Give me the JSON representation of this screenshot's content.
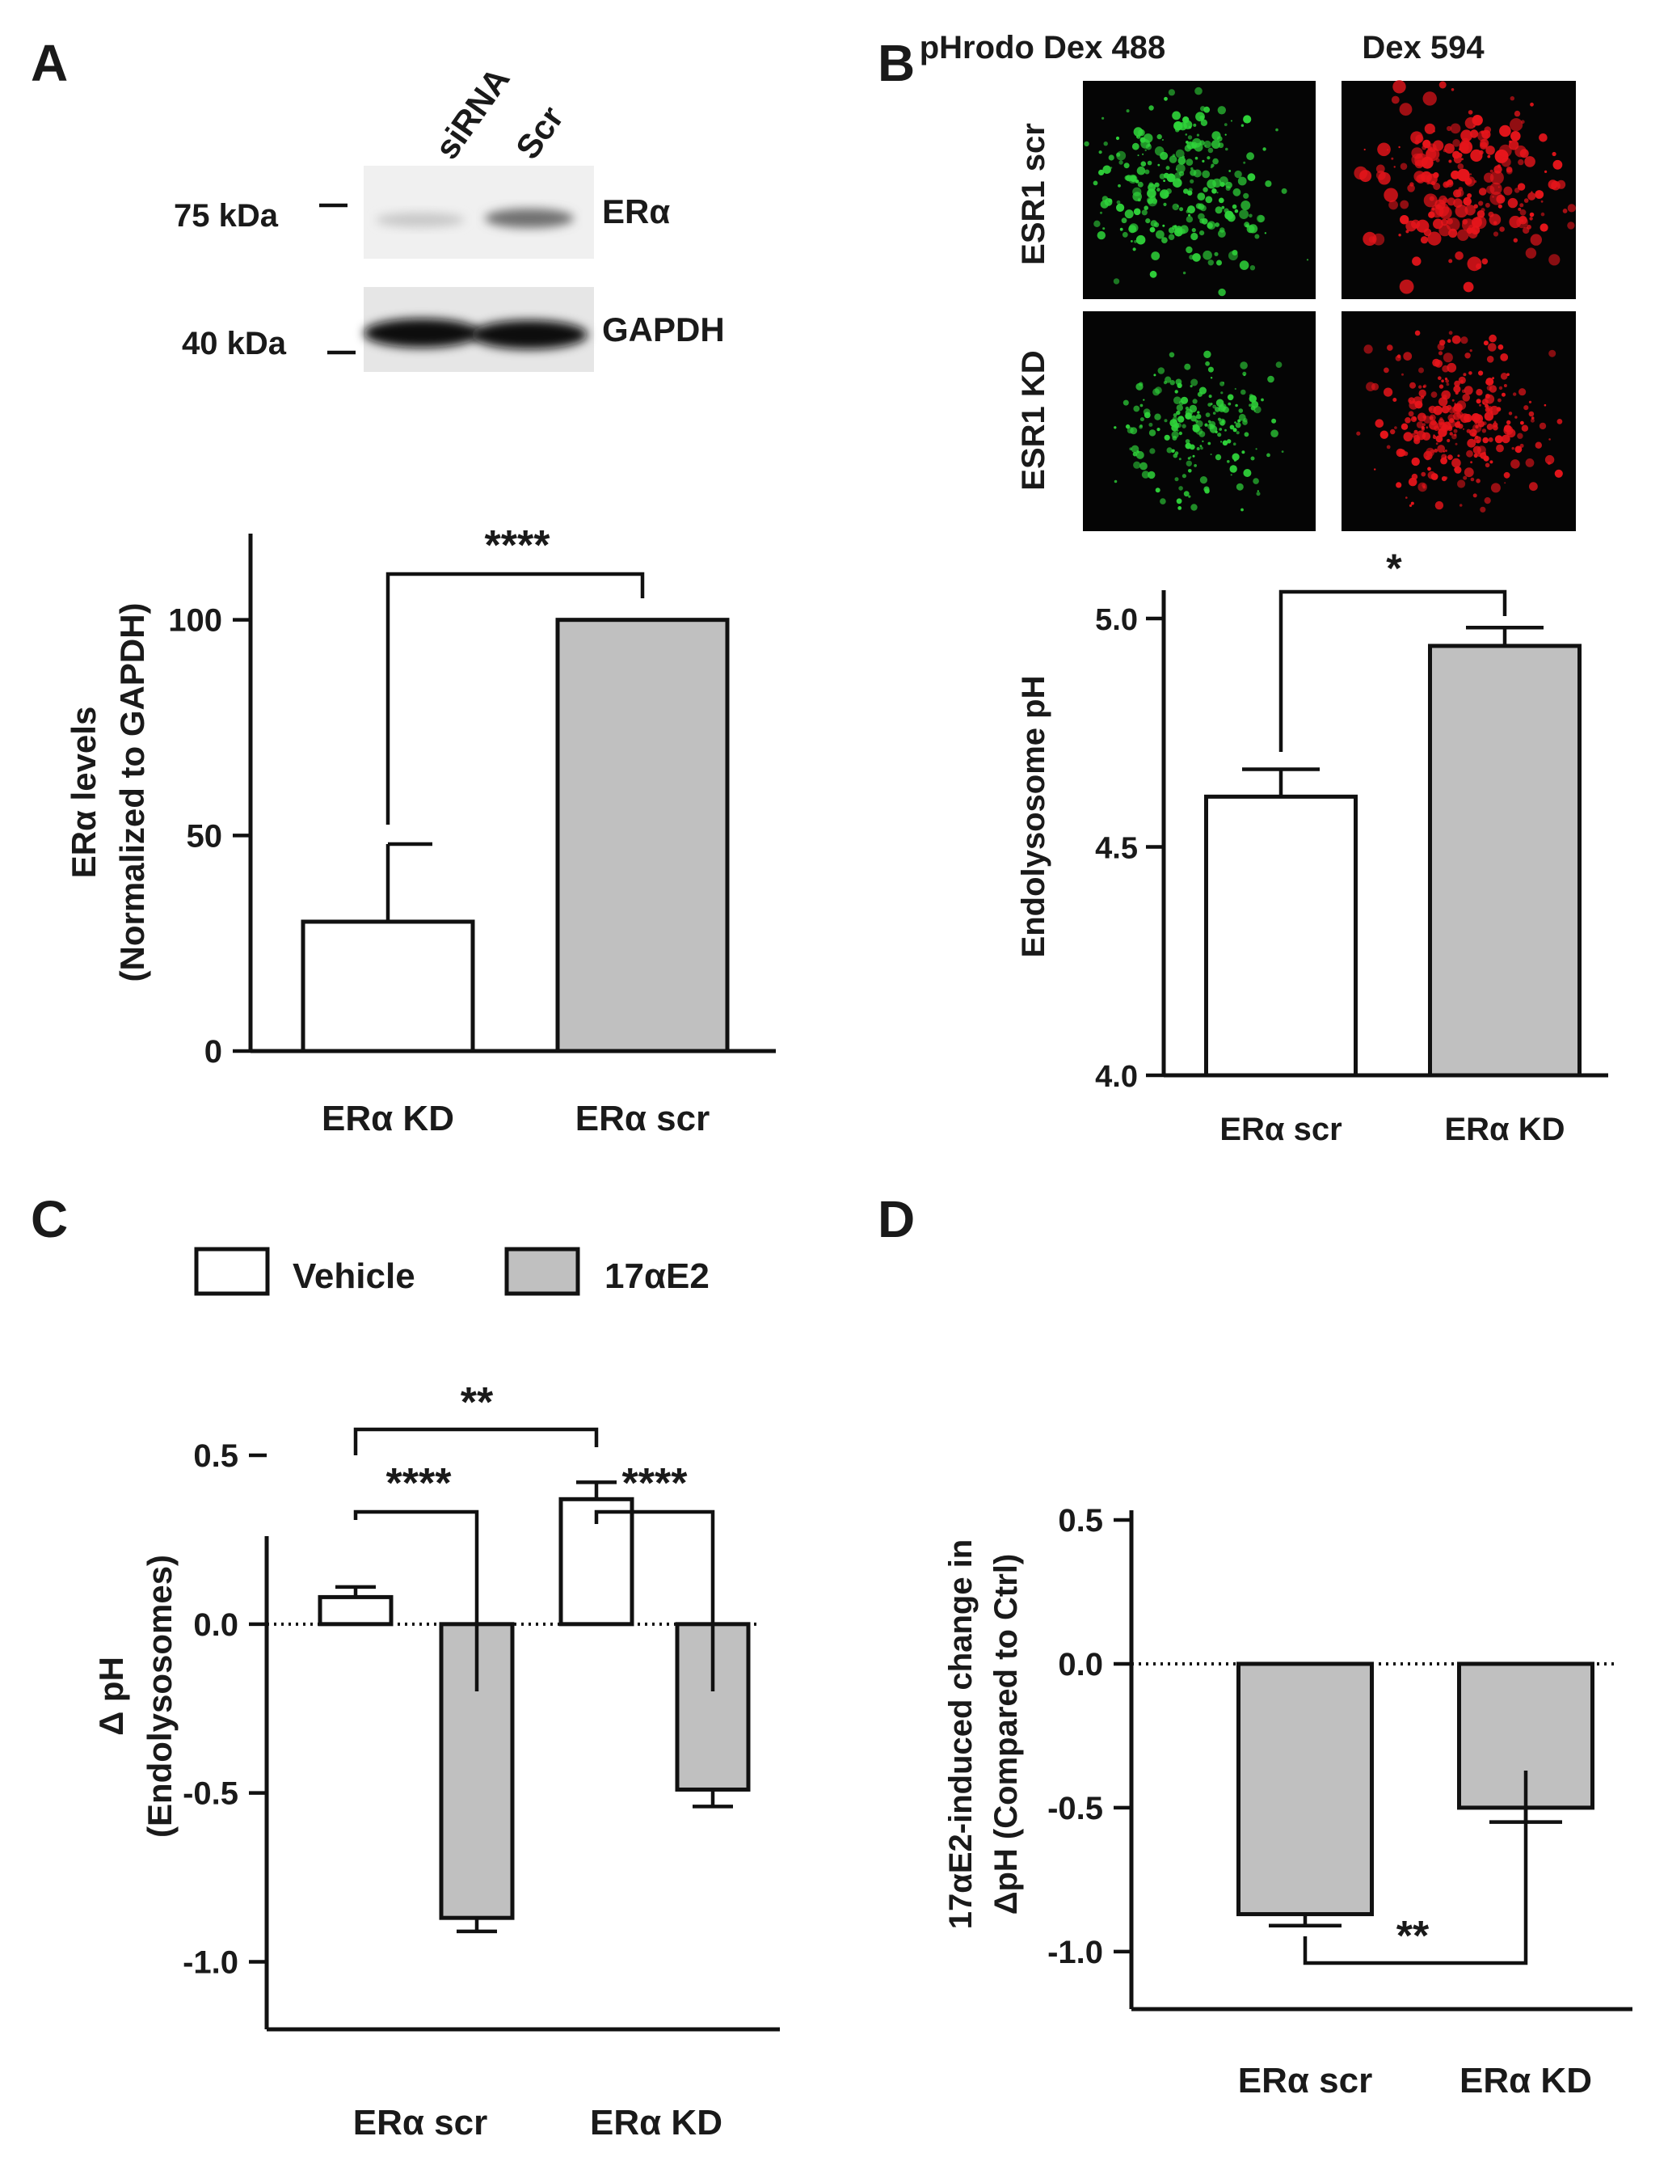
{
  "figure": {
    "panel_labels": [
      "A",
      "B",
      "C",
      "D"
    ]
  },
  "blot": {
    "lane_labels": [
      "siRNA",
      "Scr"
    ],
    "markers": [
      "75 kDa",
      "40 kDa"
    ],
    "bands": [
      "ERα",
      "GAPDH"
    ]
  },
  "microscopy": {
    "column_labels": [
      "pHrodo Dex 488",
      "Dex 594"
    ],
    "row_labels": [
      "ESR1 scr",
      "ESR1 KD"
    ],
    "colors": {
      "green": "#2fd33a",
      "red": "#e8151b",
      "background": "#050505"
    }
  },
  "legend_c": {
    "items": [
      {
        "label": "Vehicle",
        "color": "#ffffff"
      },
      {
        "label": "17αE2",
        "color": "#c0c0c0"
      }
    ]
  },
  "chart_data": [
    {
      "panel": "A",
      "type": "bar",
      "categories": [
        "ERα KD",
        "ERα scr"
      ],
      "values": [
        30,
        100
      ],
      "errors": [
        18,
        0
      ],
      "colors": [
        "#ffffff",
        "#c0c0c0"
      ],
      "ylabel": [
        "ERα levels",
        "(Normalized to GAPDH)"
      ],
      "ylim": [
        0,
        120
      ],
      "yticks": [
        "0",
        "50",
        "100"
      ],
      "annotations": [
        {
          "between": [
            0,
            1
          ],
          "text": "****"
        }
      ]
    },
    {
      "panel": "B",
      "type": "bar",
      "categories": [
        "ERα scr",
        "ERα KD"
      ],
      "values": [
        4.61,
        4.94
      ],
      "errors": [
        0.06,
        0.04
      ],
      "colors": [
        "#ffffff",
        "#c0c0c0"
      ],
      "ylabel": [
        "Endolysosome pH"
      ],
      "ylim": [
        4.0,
        5.0
      ],
      "yticks": [
        "4.0",
        "4.5",
        "5.0"
      ],
      "annotations": [
        {
          "between": [
            0,
            1
          ],
          "text": "*"
        }
      ]
    },
    {
      "panel": "C",
      "type": "bar",
      "categories": [
        "ERα scr",
        "ERα KD"
      ],
      "series": [
        {
          "name": "Vehicle",
          "values": [
            0.08,
            0.37
          ],
          "errors": [
            0.03,
            0.05
          ],
          "color": "#ffffff"
        },
        {
          "name": "17αE2",
          "values": [
            -0.87,
            -0.49
          ],
          "errors": [
            0.04,
            0.05
          ],
          "color": "#c0c0c0"
        }
      ],
      "ylabel": [
        "Δ pH",
        "(Endolysosomes)"
      ],
      "ylim": [
        -1.2,
        0.5
      ],
      "yticks": [
        "-1.0",
        "-0.5",
        "0.0",
        "0.5"
      ],
      "zero_line": "dotted",
      "annotations": [
        {
          "text": "**"
        },
        {
          "text": "****"
        },
        {
          "text": "****"
        }
      ]
    },
    {
      "panel": "D",
      "type": "bar",
      "categories": [
        "ERα scr",
        "ERα KD"
      ],
      "values": [
        -0.87,
        -0.5
      ],
      "errors": [
        0.04,
        0.05
      ],
      "colors": [
        "#c0c0c0",
        "#c0c0c0"
      ],
      "ylabel": [
        "17αE2-induced change in",
        "ΔpH (Compared to Ctrl)"
      ],
      "ylim": [
        -1.2,
        0.5
      ],
      "yticks": [
        "-1.0",
        "-0.5",
        "0.0",
        "0.5"
      ],
      "zero_line": "dotted",
      "annotations": [
        {
          "between": [
            0,
            1
          ],
          "text": "**"
        }
      ]
    }
  ]
}
